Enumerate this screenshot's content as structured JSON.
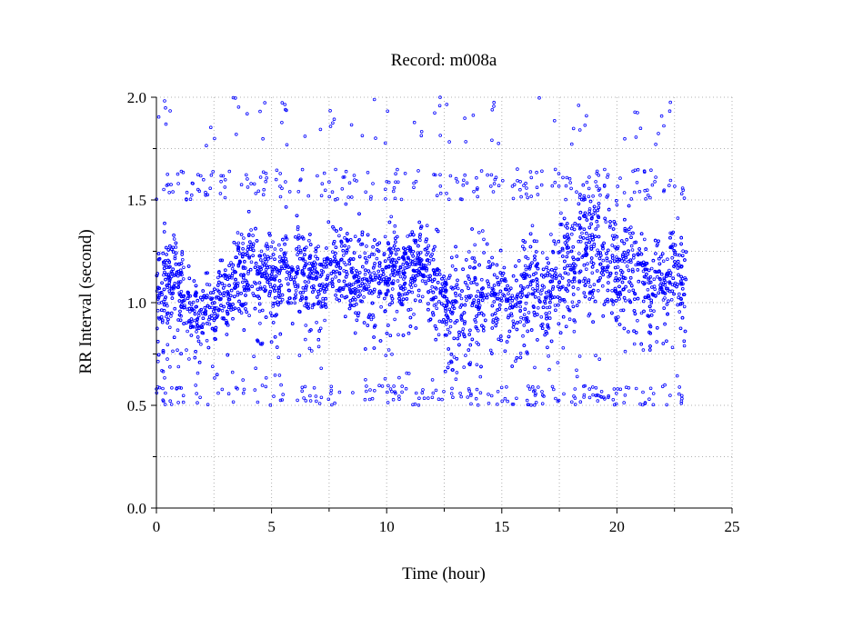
{
  "chart_data": {
    "type": "scatter",
    "title": "Record:  m008a",
    "xlabel": "Time (hour)",
    "ylabel": "RR Interval (second)",
    "xlim": [
      0,
      25
    ],
    "ylim": [
      0,
      2.0
    ],
    "x_ticks": [
      0,
      5,
      10,
      15,
      20,
      25
    ],
    "x_tick_labels": [
      "0",
      "5",
      "10",
      "15",
      "20",
      "25"
    ],
    "y_ticks": [
      0,
      0.5,
      1.0,
      1.5,
      2.0
    ],
    "y_tick_labels": [
      "0.0",
      "0.5",
      "1.0",
      "1.5",
      "2.0"
    ],
    "grid": true,
    "legend": "none",
    "marker": "open-circle",
    "marker_color": "#0000ff",
    "grid_color": "#b0b0b0",
    "data_range_x": [
      0,
      23.0
    ],
    "trend": {
      "x": [
        0,
        0.5,
        1.0,
        1.5,
        2.0,
        2.5,
        3.0,
        3.5,
        4.0,
        4.5,
        5.0,
        5.5,
        6.0,
        6.5,
        7.0,
        7.5,
        8.0,
        8.5,
        9.0,
        9.5,
        10.0,
        10.5,
        11.0,
        11.5,
        12.0,
        12.5,
        13.0,
        13.5,
        14.0,
        14.5,
        15.0,
        15.5,
        16.0,
        16.5,
        17.0,
        17.5,
        18.0,
        18.5,
        19.0,
        19.5,
        20.0,
        20.5,
        21.0,
        21.5,
        22.0,
        22.5,
        23.0
      ],
      "y_center": [
        1.02,
        1.15,
        1.1,
        0.98,
        0.97,
        0.98,
        1.02,
        1.15,
        1.2,
        1.15,
        1.1,
        1.16,
        1.18,
        1.15,
        1.12,
        1.14,
        1.18,
        1.15,
        1.1,
        1.12,
        1.15,
        1.16,
        1.18,
        1.2,
        1.15,
        1.0,
        0.98,
        1.02,
        1.05,
        1.08,
        1.05,
        1.0,
        1.08,
        1.1,
        1.05,
        1.15,
        1.2,
        1.25,
        1.25,
        1.22,
        1.2,
        1.18,
        1.12,
        1.1,
        1.12,
        1.15,
        1.14
      ],
      "y_spread": [
        0.12,
        0.14,
        0.14,
        0.1,
        0.09,
        0.1,
        0.12,
        0.15,
        0.14,
        0.12,
        0.12,
        0.12,
        0.11,
        0.12,
        0.13,
        0.12,
        0.12,
        0.12,
        0.14,
        0.13,
        0.12,
        0.12,
        0.12,
        0.12,
        0.14,
        0.12,
        0.14,
        0.15,
        0.16,
        0.16,
        0.15,
        0.15,
        0.16,
        0.16,
        0.16,
        0.16,
        0.17,
        0.18,
        0.18,
        0.18,
        0.18,
        0.16,
        0.14,
        0.13,
        0.13,
        0.13,
        0.12
      ]
    },
    "outlier_bands": {
      "low": [
        0.5,
        0.6
      ],
      "high": [
        1.5,
        1.65
      ],
      "very_high": [
        1.75,
        2.0
      ]
    }
  }
}
